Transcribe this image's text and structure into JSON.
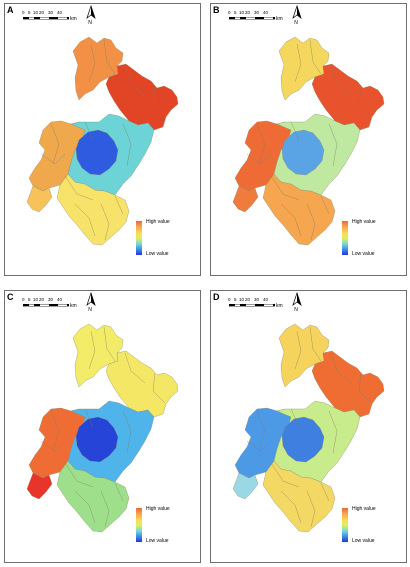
{
  "panels": [
    {
      "letter": "A",
      "scale_ticks": [
        "0",
        "5",
        "10",
        "20",
        "30",
        "40"
      ],
      "scale_unit": "km",
      "north_label": "N",
      "legend_high": "High value",
      "legend_low": "Low value",
      "colors": {
        "north": "#f29146",
        "northeast": "#e24526",
        "center": "#2f5be0",
        "ring": "#6cd3d6",
        "west": "#f0a84c",
        "south": "#f7e26a",
        "southwest": "#f7c25a"
      }
    },
    {
      "letter": "B",
      "scale_ticks": [
        "0",
        "5",
        "10",
        "20",
        "30",
        "40"
      ],
      "scale_unit": "km",
      "north_label": "N",
      "legend_high": "High value",
      "legend_low": "Low value",
      "colors": {
        "north": "#f5d75e",
        "northeast": "#e8522c",
        "center": "#5aa4e6",
        "ring": "#bfe8a1",
        "west": "#ee6b36",
        "south": "#f5a64e",
        "southwest": "#ef7b3c"
      }
    },
    {
      "letter": "C",
      "scale_ticks": [
        "0",
        "5",
        "10",
        "20",
        "30",
        "40"
      ],
      "scale_unit": "km",
      "north_label": "N",
      "legend_high": "High value",
      "legend_low": "Low value",
      "colors": {
        "north": "#f2ec68",
        "northeast": "#f4e766",
        "center": "#2744d8",
        "ring": "#4fb4ea",
        "west": "#ef6d35",
        "south": "#9edf8b",
        "southwest": "#e8352a"
      }
    },
    {
      "letter": "D",
      "scale_ticks": [
        "0",
        "5",
        "10",
        "20",
        "30",
        "40"
      ],
      "scale_unit": "km",
      "north_label": "N",
      "legend_high": "High value",
      "legend_low": "Low value",
      "colors": {
        "north": "#f5d35d",
        "northeast": "#ef6c33",
        "center": "#3f7fe0",
        "ring": "#c8eb8c",
        "west": "#4c9ae6",
        "south": "#f3d863",
        "southwest": "#9ad8e6"
      }
    }
  ]
}
